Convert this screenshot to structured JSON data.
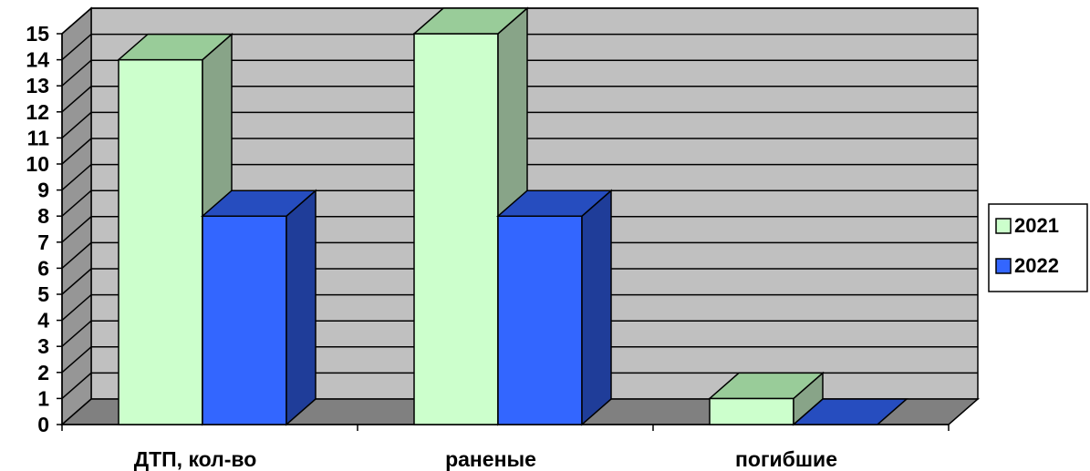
{
  "chart_data": {
    "type": "bar",
    "categories": [
      "ДТП, кол-во",
      "раненые",
      "погибшие"
    ],
    "series": [
      {
        "name": "2021",
        "values": [
          14,
          15,
          1
        ],
        "color": "#ccffcc"
      },
      {
        "name": "2022",
        "values": [
          8,
          8,
          0
        ],
        "color": "#3366ff"
      }
    ],
    "y_ticks": [
      "0",
      "1",
      "2",
      "3",
      "4",
      "5",
      "6",
      "7",
      "8",
      "9",
      "10",
      "11",
      "12",
      "13",
      "14",
      "15"
    ],
    "ylim": [
      0,
      15
    ],
    "grid": true,
    "legend_position": "right",
    "style": "3d-clustered-column",
    "colors": {
      "wall": "#c0c0c0",
      "floor": "#808080",
      "side_wall": "#969696",
      "gridline": "#000000"
    }
  }
}
